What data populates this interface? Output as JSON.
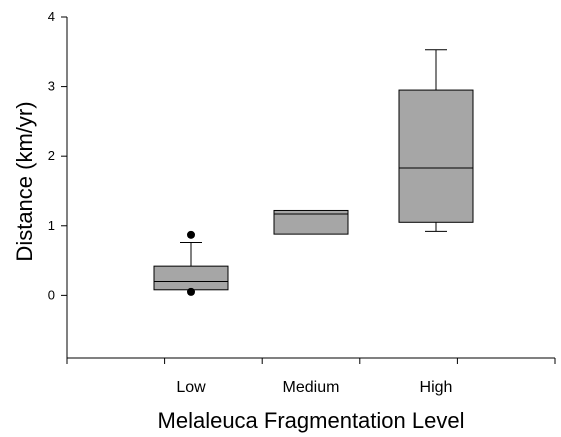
{
  "chart_data": {
    "type": "box",
    "xlabel": "Melaleuca Fragmentation Level",
    "ylabel": "Distance (km/yr)",
    "ylim": [
      -0.9,
      4
    ],
    "yticks": [
      0,
      1,
      2,
      3,
      4
    ],
    "grid": false,
    "box_color": "#a6a6a6",
    "categories": [
      "Low",
      "Medium",
      "High"
    ],
    "boxes": [
      {
        "category": "Low",
        "whisker_low": 0.08,
        "q1": 0.08,
        "median": 0.2,
        "q3": 0.42,
        "whisker_high": 0.76,
        "outliers": [
          0.87,
          0.05
        ]
      },
      {
        "category": "Medium",
        "whisker_low": 0.88,
        "q1": 0.88,
        "median": 1.17,
        "q3": 1.22,
        "whisker_high": 1.22,
        "outliers": []
      },
      {
        "category": "High",
        "whisker_low": 0.92,
        "q1": 1.05,
        "median": 1.83,
        "q3": 2.95,
        "whisker_high": 3.53,
        "outliers": []
      }
    ]
  }
}
